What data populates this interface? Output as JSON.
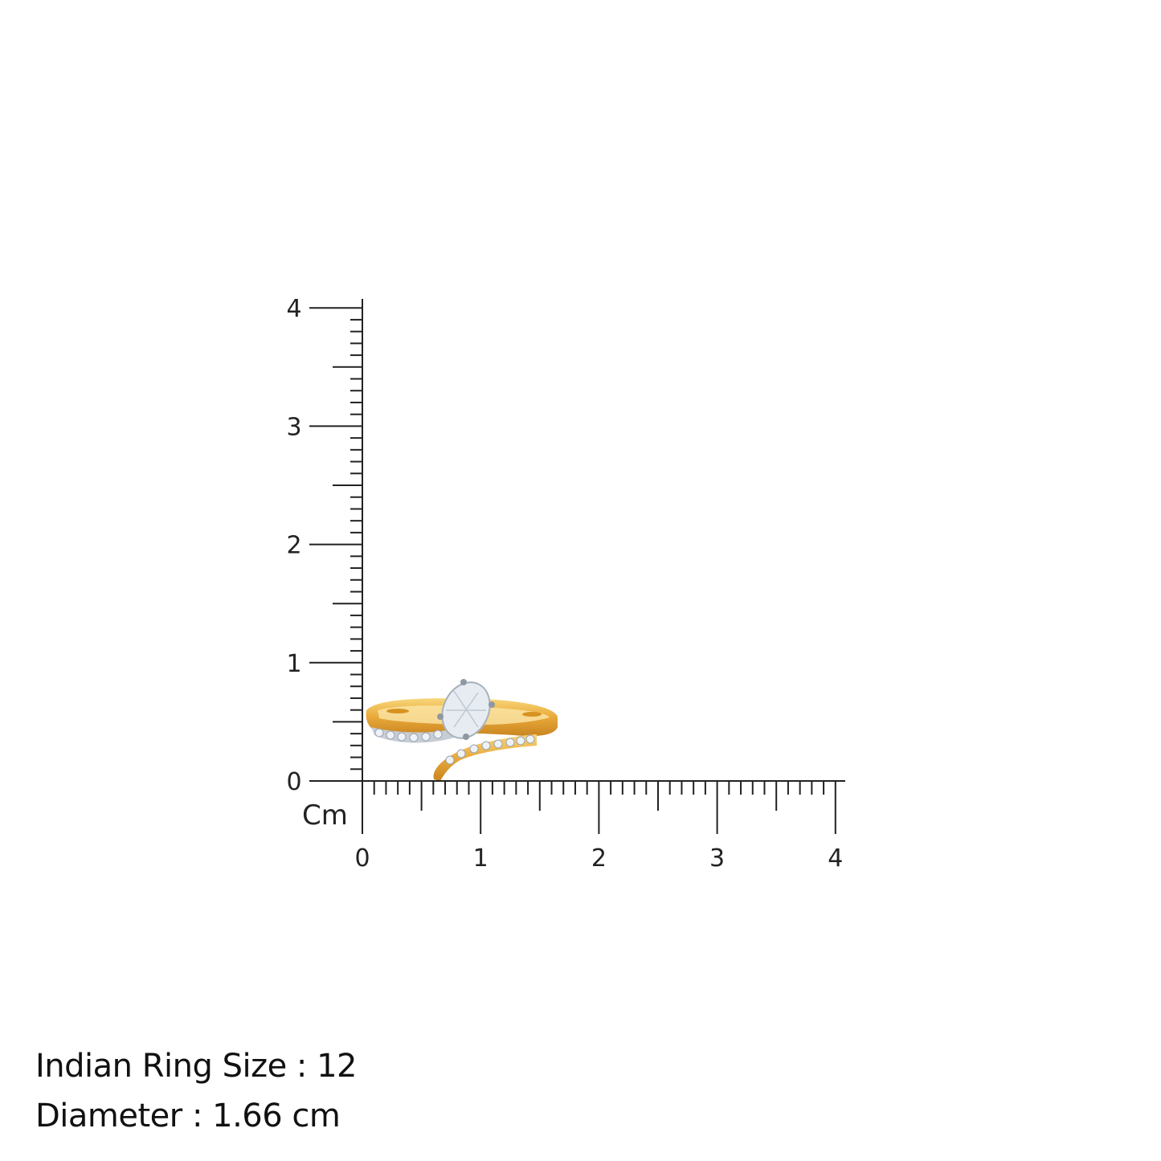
{
  "ruler": {
    "unit_label": "Cm",
    "x_tick_labels": [
      "0",
      "1",
      "2",
      "3",
      "4"
    ],
    "y_tick_labels": [
      "0",
      "1",
      "2",
      "3",
      "4"
    ],
    "range_cm": [
      0,
      4
    ],
    "minor_step_mm": 1
  },
  "product": {
    "image": "gold-ring-with-diamonds",
    "colors": {
      "gold": "#E9A93A",
      "gold_light": "#F6CF6B",
      "stone": "#E6ECF2"
    }
  },
  "info": {
    "ring_size": "Indian Ring Size : 12",
    "diameter": "Diameter : 1.66 cm"
  }
}
